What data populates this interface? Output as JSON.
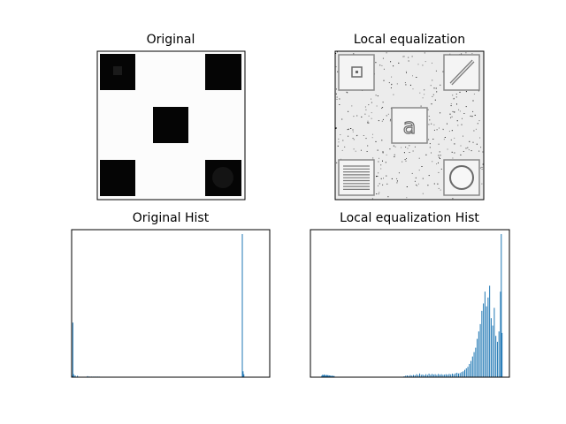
{
  "figure": {
    "panels": [
      {
        "id": "orig_img",
        "title": "Original"
      },
      {
        "id": "eq_img",
        "title": "Local equalization"
      },
      {
        "id": "orig_hist",
        "title": "Original Hist"
      },
      {
        "id": "eq_hist",
        "title": "Local equalization Hist"
      }
    ]
  },
  "colors": {
    "hist_bar": "#1f77b4",
    "axis": "#000000",
    "background": "#ffffff"
  },
  "chart_data": [
    {
      "type": "heatmap",
      "title": "Original",
      "colormap": "gray",
      "grid": false,
      "description_values": {
        "background_level": 252,
        "square_level": 2,
        "square_count": 5,
        "square_layout": [
          "top-left",
          "top-right",
          "center",
          "bottom-left",
          "bottom-right"
        ],
        "inner_feature_level": 18
      }
    },
    {
      "type": "heatmap",
      "title": "Local equalization",
      "colormap": "gray",
      "grid": false,
      "description_values": {
        "background_level": 235,
        "noise_density": 0.12,
        "square_count": 5,
        "square_layout": [
          "top-left",
          "top-right",
          "center",
          "bottom-left",
          "bottom-right"
        ],
        "inner_glyphs": [
          "small-square",
          "diagonal-line",
          "letter-a",
          "horizontal-lines",
          "circle"
        ]
      }
    },
    {
      "type": "bar",
      "title": "Original Hist",
      "xlim": [
        0,
        256
      ],
      "ylim": [
        0,
        1.0
      ],
      "grid": false,
      "values_note": "relative counts",
      "x": [
        0,
        1,
        2,
        4,
        7,
        20,
        21,
        22,
        23,
        24,
        25,
        26,
        27,
        28,
        29,
        30,
        31,
        32,
        33,
        34,
        35,
        36,
        220,
        221,
        222
      ],
      "values": [
        0.01,
        0.37,
        0.02,
        0.012,
        0.01,
        0.007,
        0.004,
        0.003,
        0.004,
        0.003,
        0.004,
        0.003,
        0.004,
        0.003,
        0.004,
        0.003,
        0.004,
        0.003,
        0.004,
        0.003,
        0.004,
        0.003,
        0.97,
        0.04,
        0.02
      ]
    },
    {
      "type": "bar",
      "title": "Local equalization Hist",
      "xlim": [
        0,
        256
      ],
      "ylim": [
        0,
        1.0
      ],
      "grid": false,
      "values_note": "relative counts",
      "x": [
        14,
        15,
        16,
        17,
        18,
        19,
        20,
        21,
        22,
        23,
        24,
        25,
        26,
        27,
        28,
        29,
        30,
        120,
        122,
        124,
        126,
        128,
        130,
        132,
        134,
        136,
        138,
        140,
        142,
        144,
        146,
        148,
        150,
        152,
        154,
        156,
        158,
        160,
        162,
        164,
        166,
        168,
        170,
        172,
        174,
        176,
        178,
        180,
        182,
        184,
        186,
        188,
        190,
        192,
        194,
        196,
        198,
        200,
        202,
        204,
        206,
        208,
        210,
        212,
        214,
        216,
        218,
        220,
        222,
        224,
        226,
        228,
        230,
        232,
        234,
        236,
        238,
        240,
        242,
        244,
        245,
        246
      ],
      "values": [
        0.01,
        0.016,
        0.012,
        0.018,
        0.014,
        0.01,
        0.016,
        0.012,
        0.014,
        0.01,
        0.012,
        0.01,
        0.008,
        0.01,
        0.009,
        0.007,
        0.008,
        0.006,
        0.01,
        0.012,
        0.009,
        0.014,
        0.011,
        0.015,
        0.012,
        0.02,
        0.014,
        0.025,
        0.016,
        0.018,
        0.013,
        0.02,
        0.015,
        0.024,
        0.016,
        0.022,
        0.018,
        0.02,
        0.015,
        0.022,
        0.017,
        0.02,
        0.016,
        0.018,
        0.02,
        0.017,
        0.022,
        0.019,
        0.024,
        0.02,
        0.026,
        0.03,
        0.025,
        0.028,
        0.035,
        0.04,
        0.05,
        0.06,
        0.07,
        0.09,
        0.11,
        0.14,
        0.17,
        0.2,
        0.26,
        0.31,
        0.36,
        0.45,
        0.5,
        0.58,
        0.48,
        0.54,
        0.62,
        0.4,
        0.35,
        0.47,
        0.28,
        0.24,
        0.31,
        0.58,
        0.97,
        0.3
      ]
    }
  ]
}
